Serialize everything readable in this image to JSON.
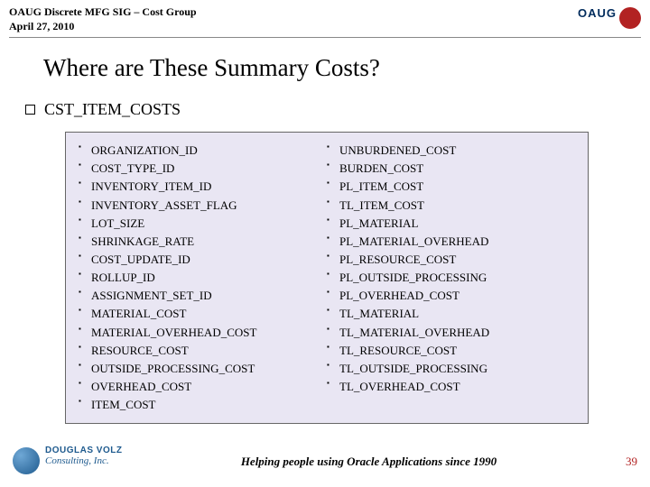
{
  "header": {
    "line1": "OAUG Discrete MFG SIG – Cost Group",
    "line2": "April 27, 2010"
  },
  "title": "Where are These Summary Costs?",
  "section": "CST_ITEM_COSTS",
  "columns": {
    "left": [
      "ORGANIZATION_ID",
      "COST_TYPE_ID",
      "INVENTORY_ITEM_ID",
      "INVENTORY_ASSET_FLAG",
      "LOT_SIZE",
      "SHRINKAGE_RATE",
      "COST_UPDATE_ID",
      "ROLLUP_ID",
      "ASSIGNMENT_SET_ID",
      "MATERIAL_COST",
      "MATERIAL_OVERHEAD_COST",
      "RESOURCE_COST",
      "OUTSIDE_PROCESSING_COST",
      "OVERHEAD_COST",
      "ITEM_COST"
    ],
    "right": [
      "UNBURDENED_COST",
      "BURDEN_COST",
      "PL_ITEM_COST",
      "TL_ITEM_COST",
      "PL_MATERIAL",
      "PL_MATERIAL_OVERHEAD",
      "PL_RESOURCE_COST",
      "PL_OUTSIDE_PROCESSING",
      "PL_OVERHEAD_COST",
      "TL_MATERIAL",
      "TL_MATERIAL_OVERHEAD",
      "TL_RESOURCE_COST",
      "TL_OUTSIDE_PROCESSING",
      "TL_OVERHEAD_COST"
    ]
  },
  "footer": {
    "logo_line1": "DOUGLAS VOLZ",
    "logo_line2": "Consulting, Inc.",
    "tagline": "Helping people using Oracle Applications since 1990",
    "page": "39"
  },
  "colors": {
    "box_bg": "#e9e6f3",
    "accent_red": "#b22222",
    "accent_blue": "#1e5a8e"
  }
}
